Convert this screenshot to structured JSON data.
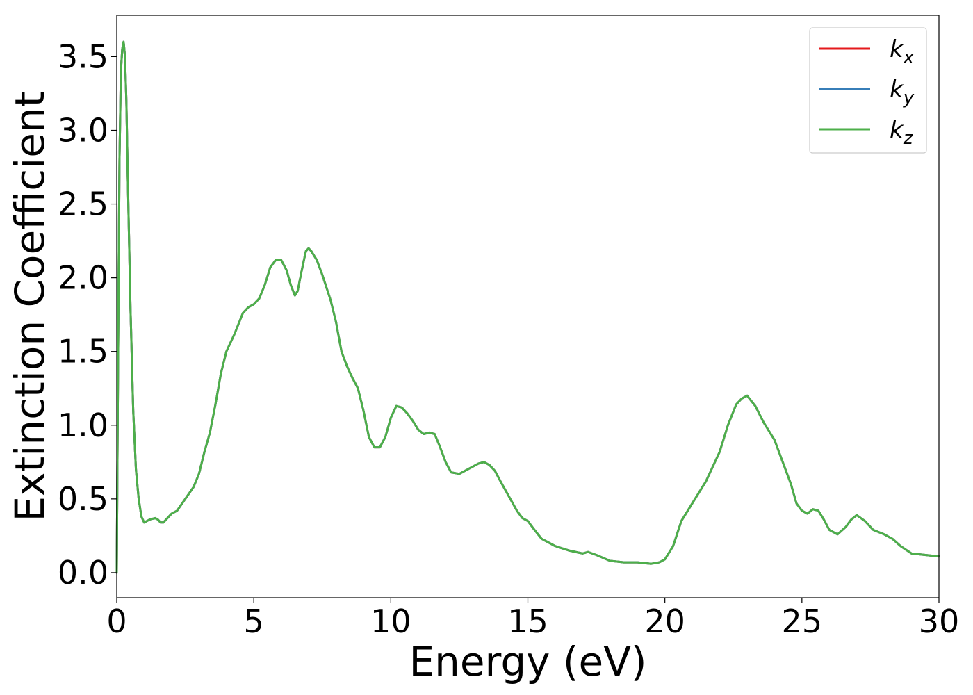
{
  "chart_data": {
    "type": "line",
    "title": "",
    "xlabel": "Energy (eV)",
    "ylabel": "Extinction Coefficient",
    "xlim": [
      0,
      30
    ],
    "ylim": [
      -0.17,
      3.78
    ],
    "xticks": [
      0,
      5,
      10,
      15,
      20,
      25,
      30
    ],
    "yticks": [
      0.0,
      0.5,
      1.0,
      1.5,
      2.0,
      2.5,
      3.0,
      3.5
    ],
    "ytick_labels": [
      "0.0",
      "0.5",
      "1.0",
      "1.5",
      "2.0",
      "2.5",
      "3.0",
      "3.5"
    ],
    "grid": false,
    "legend_position": "top-right",
    "x": [
      0,
      0.05,
      0.1,
      0.15,
      0.2,
      0.25,
      0.3,
      0.35,
      0.4,
      0.5,
      0.6,
      0.7,
      0.8,
      0.9,
      1.0,
      1.1,
      1.2,
      1.4,
      1.5,
      1.6,
      1.7,
      1.8,
      1.9,
      2.0,
      2.2,
      2.5,
      2.8,
      3.0,
      3.2,
      3.4,
      3.6,
      3.8,
      4.0,
      4.3,
      4.6,
      4.8,
      5.0,
      5.2,
      5.4,
      5.6,
      5.8,
      6.0,
      6.2,
      6.35,
      6.5,
      6.6,
      6.75,
      6.9,
      7.0,
      7.1,
      7.3,
      7.5,
      7.8,
      8.0,
      8.2,
      8.4,
      8.6,
      8.8,
      9.0,
      9.2,
      9.4,
      9.6,
      9.8,
      10.0,
      10.2,
      10.4,
      10.6,
      10.8,
      11.0,
      11.2,
      11.4,
      11.6,
      11.8,
      12.0,
      12.2,
      12.5,
      12.8,
      13.0,
      13.2,
      13.4,
      13.6,
      13.8,
      14.0,
      14.3,
      14.6,
      14.8,
      15.0,
      15.2,
      15.5,
      16.0,
      16.5,
      17.0,
      17.2,
      17.5,
      18.0,
      18.5,
      19.0,
      19.5,
      19.8,
      20.0,
      20.3,
      20.6,
      21.0,
      21.5,
      22.0,
      22.3,
      22.6,
      22.8,
      23.0,
      23.3,
      23.6,
      24.0,
      24.3,
      24.6,
      24.8,
      25.0,
      25.2,
      25.4,
      25.6,
      25.8,
      26.0,
      26.3,
      26.6,
      26.8,
      27.0,
      27.3,
      27.6,
      28.0,
      28.3,
      28.6,
      29.0,
      29.5,
      30.0
    ],
    "series": [
      {
        "name": "k_x",
        "color": "#e41a1c",
        "values": [
          0.0,
          1.5,
          2.8,
          3.4,
          3.55,
          3.6,
          3.5,
          3.2,
          2.7,
          1.8,
          1.1,
          0.7,
          0.5,
          0.38,
          0.34,
          0.35,
          0.36,
          0.37,
          0.36,
          0.34,
          0.34,
          0.36,
          0.38,
          0.4,
          0.42,
          0.5,
          0.58,
          0.67,
          0.82,
          0.95,
          1.14,
          1.35,
          1.5,
          1.62,
          1.76,
          1.8,
          1.82,
          1.86,
          1.95,
          2.07,
          2.12,
          2.12,
          2.05,
          1.95,
          1.88,
          1.91,
          2.05,
          2.18,
          2.2,
          2.18,
          2.12,
          2.02,
          1.85,
          1.7,
          1.5,
          1.4,
          1.32,
          1.25,
          1.1,
          0.92,
          0.85,
          0.85,
          0.92,
          1.05,
          1.13,
          1.12,
          1.08,
          1.03,
          0.97,
          0.94,
          0.95,
          0.94,
          0.85,
          0.75,
          0.68,
          0.67,
          0.7,
          0.72,
          0.74,
          0.75,
          0.73,
          0.69,
          0.62,
          0.52,
          0.42,
          0.37,
          0.35,
          0.3,
          0.23,
          0.18,
          0.15,
          0.13,
          0.14,
          0.12,
          0.08,
          0.07,
          0.07,
          0.06,
          0.07,
          0.09,
          0.18,
          0.35,
          0.47,
          0.62,
          0.82,
          1.0,
          1.14,
          1.18,
          1.2,
          1.13,
          1.02,
          0.9,
          0.75,
          0.6,
          0.47,
          0.42,
          0.4,
          0.43,
          0.42,
          0.36,
          0.29,
          0.26,
          0.31,
          0.36,
          0.39,
          0.35,
          0.29,
          0.26,
          0.23,
          0.18,
          0.13,
          0.12,
          0.11
        ]
      },
      {
        "name": "k_y",
        "color": "#377eb8",
        "values": [
          0.0,
          1.5,
          2.8,
          3.4,
          3.55,
          3.6,
          3.5,
          3.2,
          2.7,
          1.8,
          1.1,
          0.7,
          0.5,
          0.38,
          0.34,
          0.35,
          0.36,
          0.37,
          0.36,
          0.34,
          0.34,
          0.36,
          0.38,
          0.4,
          0.42,
          0.5,
          0.58,
          0.67,
          0.82,
          0.95,
          1.14,
          1.35,
          1.5,
          1.62,
          1.76,
          1.8,
          1.82,
          1.86,
          1.95,
          2.07,
          2.12,
          2.12,
          2.05,
          1.95,
          1.88,
          1.91,
          2.05,
          2.18,
          2.2,
          2.18,
          2.12,
          2.02,
          1.85,
          1.7,
          1.5,
          1.4,
          1.32,
          1.25,
          1.1,
          0.92,
          0.85,
          0.85,
          0.92,
          1.05,
          1.13,
          1.12,
          1.08,
          1.03,
          0.97,
          0.94,
          0.95,
          0.94,
          0.85,
          0.75,
          0.68,
          0.67,
          0.7,
          0.72,
          0.74,
          0.75,
          0.73,
          0.69,
          0.62,
          0.52,
          0.42,
          0.37,
          0.35,
          0.3,
          0.23,
          0.18,
          0.15,
          0.13,
          0.14,
          0.12,
          0.08,
          0.07,
          0.07,
          0.06,
          0.07,
          0.09,
          0.18,
          0.35,
          0.47,
          0.62,
          0.82,
          1.0,
          1.14,
          1.18,
          1.2,
          1.13,
          1.02,
          0.9,
          0.75,
          0.6,
          0.47,
          0.42,
          0.4,
          0.43,
          0.42,
          0.36,
          0.29,
          0.26,
          0.31,
          0.36,
          0.39,
          0.35,
          0.29,
          0.26,
          0.23,
          0.18,
          0.13,
          0.12,
          0.11
        ]
      },
      {
        "name": "k_z",
        "color": "#4daf4a",
        "values": [
          0.0,
          1.5,
          2.8,
          3.4,
          3.55,
          3.6,
          3.5,
          3.2,
          2.7,
          1.8,
          1.1,
          0.7,
          0.5,
          0.38,
          0.34,
          0.35,
          0.36,
          0.37,
          0.36,
          0.34,
          0.34,
          0.36,
          0.38,
          0.4,
          0.42,
          0.5,
          0.58,
          0.67,
          0.82,
          0.95,
          1.14,
          1.35,
          1.5,
          1.62,
          1.76,
          1.8,
          1.82,
          1.86,
          1.95,
          2.07,
          2.12,
          2.12,
          2.05,
          1.95,
          1.88,
          1.91,
          2.05,
          2.18,
          2.2,
          2.18,
          2.12,
          2.02,
          1.85,
          1.7,
          1.5,
          1.4,
          1.32,
          1.25,
          1.1,
          0.92,
          0.85,
          0.85,
          0.92,
          1.05,
          1.13,
          1.12,
          1.08,
          1.03,
          0.97,
          0.94,
          0.95,
          0.94,
          0.85,
          0.75,
          0.68,
          0.67,
          0.7,
          0.72,
          0.74,
          0.75,
          0.73,
          0.69,
          0.62,
          0.52,
          0.42,
          0.37,
          0.35,
          0.3,
          0.23,
          0.18,
          0.15,
          0.13,
          0.14,
          0.12,
          0.08,
          0.07,
          0.07,
          0.06,
          0.07,
          0.09,
          0.18,
          0.35,
          0.47,
          0.62,
          0.82,
          1.0,
          1.14,
          1.18,
          1.2,
          1.13,
          1.02,
          0.9,
          0.75,
          0.6,
          0.47,
          0.42,
          0.4,
          0.43,
          0.42,
          0.36,
          0.29,
          0.26,
          0.31,
          0.36,
          0.39,
          0.35,
          0.29,
          0.26,
          0.23,
          0.18,
          0.13,
          0.12,
          0.11
        ]
      }
    ]
  }
}
